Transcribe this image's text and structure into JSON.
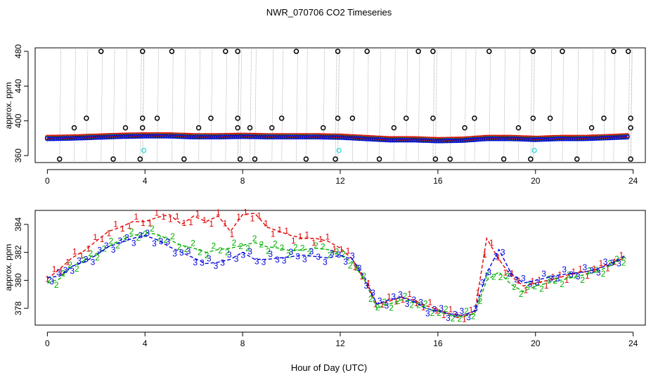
{
  "title": "NWR_070706  CO2 Timeseries",
  "xlabel": "Hour of Day (UTC)",
  "colors": {
    "series1": "#e00000",
    "series2": "#00b000",
    "series3": "#0000e0",
    "outlier": "#000000",
    "marker": "#40e0e0",
    "gray": "#999999"
  },
  "chart_data": [
    {
      "type": "scatter",
      "title": "NWR_070706  CO2 Timeseries",
      "xlabel": "",
      "ylabel": "approx. ppm",
      "xlim": [
        -0.5,
        24.5
      ],
      "ylim": [
        352,
        484
      ],
      "xticks": [
        0,
        4,
        8,
        12,
        16,
        20,
        24
      ],
      "yticks": [
        360,
        400,
        440,
        480
      ],
      "xtick_labels": [
        "0",
        "4",
        "8",
        "12",
        "16",
        "20",
        "24"
      ],
      "ytick_labels": [
        "360",
        "400",
        "440",
        "480"
      ],
      "baseline": {
        "x": [
          0,
          1,
          2,
          3,
          4,
          5,
          6,
          7,
          8,
          9,
          10,
          11,
          12,
          13,
          14,
          15,
          16,
          17,
          18,
          19,
          20,
          21,
          22,
          23,
          23.8
        ],
        "y": [
          380,
          380.5,
          381.5,
          382.5,
          383,
          383,
          382,
          382,
          382.5,
          382,
          382,
          382,
          381.5,
          380,
          378.5,
          378.5,
          377.5,
          378,
          380,
          380,
          379,
          380,
          380,
          381,
          382
        ]
      },
      "outliers_high": [
        2.2,
        3.9,
        5.1,
        7.3,
        7.8,
        10.2,
        11.9,
        13.1,
        15.2,
        15.8,
        18.1,
        19.9,
        21.1,
        23.2,
        23.8
      ],
      "outliers_low": [
        0.5,
        2.7,
        3.8,
        5.6,
        7.9,
        8.5,
        10.6,
        11.8,
        13.6,
        15.9,
        16.5,
        18.7,
        19.8,
        21.7,
        23.9
      ],
      "outliers_mid": [
        {
          "x": 1.1,
          "y": 392
        },
        {
          "x": 1.6,
          "y": 403
        },
        {
          "x": 3.2,
          "y": 392
        },
        {
          "x": 3.9,
          "y": 392
        },
        {
          "x": 3.9,
          "y": 403
        },
        {
          "x": 4.5,
          "y": 403
        },
        {
          "x": 6.2,
          "y": 392
        },
        {
          "x": 6.7,
          "y": 403
        },
        {
          "x": 7.8,
          "y": 392
        },
        {
          "x": 7.8,
          "y": 403
        },
        {
          "x": 8.3,
          "y": 392
        },
        {
          "x": 9.2,
          "y": 392
        },
        {
          "x": 9.6,
          "y": 403
        },
        {
          "x": 11.3,
          "y": 392
        },
        {
          "x": 11.9,
          "y": 403
        },
        {
          "x": 12.5,
          "y": 403
        },
        {
          "x": 14.2,
          "y": 392
        },
        {
          "x": 14.7,
          "y": 403
        },
        {
          "x": 15.8,
          "y": 403
        },
        {
          "x": 17.1,
          "y": 392
        },
        {
          "x": 17.5,
          "y": 403
        },
        {
          "x": 19.3,
          "y": 392
        },
        {
          "x": 19.9,
          "y": 403
        },
        {
          "x": 20.6,
          "y": 403
        },
        {
          "x": 22.3,
          "y": 392
        },
        {
          "x": 22.8,
          "y": 403
        },
        {
          "x": 23.9,
          "y": 392
        },
        {
          "x": 23.9,
          "y": 403
        }
      ],
      "cyan_markers": [
        {
          "x": 3.95,
          "y": 366
        },
        {
          "x": 11.95,
          "y": 366
        },
        {
          "x": 19.95,
          "y": 366
        }
      ]
    },
    {
      "type": "line",
      "title": "",
      "xlabel": "Hour of Day (UTC)",
      "ylabel": "approx. ppm",
      "xlim": [
        -0.5,
        24.5
      ],
      "ylim": [
        376.8,
        385
      ],
      "xticks": [
        0,
        4,
        8,
        12,
        16,
        20,
        24
      ],
      "yticks": [
        378,
        380,
        382,
        384
      ],
      "xtick_labels": [
        "0",
        "4",
        "8",
        "12",
        "16",
        "20",
        "24"
      ],
      "ytick_labels": [
        "378",
        "380",
        "382",
        "384"
      ],
      "series": [
        {
          "name": "1",
          "x": [
            0,
            0.5,
            1,
            1.5,
            2,
            2.5,
            3,
            3.5,
            4,
            4.5,
            5,
            5.5,
            6,
            6.5,
            7,
            7.5,
            8,
            8.5,
            9,
            9.5,
            10,
            10.5,
            11,
            11.5,
            12,
            12.5,
            13,
            13.5,
            14,
            14.5,
            15,
            15.5,
            16,
            16.5,
            17,
            17.5,
            18,
            18.5,
            19,
            19.5,
            20,
            20.5,
            21,
            21.5,
            22,
            22.5,
            23,
            23.7
          ],
          "y": [
            380.1,
            380.8,
            381.6,
            382.1,
            382.8,
            383.5,
            383.8,
            384.2,
            384.2,
            384.5,
            384.7,
            384.0,
            384.6,
            384.2,
            384.6,
            383.5,
            384.7,
            384.8,
            383.8,
            383.5,
            383.2,
            383.0,
            383.0,
            382.8,
            382.3,
            381.5,
            380.0,
            378.3,
            378.5,
            378.8,
            378.6,
            378.2,
            377.9,
            377.6,
            377.5,
            377.6,
            383.0,
            381.5,
            380.3,
            379.6,
            379.8,
            380.0,
            380.2,
            380.5,
            380.6,
            380.8,
            381.2,
            381.6
          ]
        },
        {
          "name": "2",
          "x": [
            0,
            0.5,
            1,
            1.5,
            2,
            2.5,
            3,
            3.5,
            4,
            4.5,
            5,
            5.5,
            6,
            6.5,
            7,
            7.5,
            8,
            8.5,
            9,
            9.5,
            10,
            10.5,
            11,
            11.5,
            12,
            12.5,
            13,
            13.5,
            14,
            14.5,
            15,
            15.5,
            16,
            16.5,
            17,
            17.5,
            18,
            18.5,
            19,
            19.5,
            20,
            20.5,
            21,
            21.5,
            22,
            22.5,
            23,
            23.7
          ],
          "y": [
            379.8,
            380.1,
            381.0,
            381.4,
            381.9,
            382.4,
            382.9,
            383.2,
            383.4,
            383.3,
            382.9,
            382.5,
            382.3,
            382.0,
            382.2,
            382.3,
            382.5,
            382.7,
            382.4,
            382.3,
            382.1,
            382.2,
            382.3,
            382.2,
            381.8,
            381.3,
            380.0,
            378.0,
            378.3,
            378.6,
            378.5,
            378.0,
            377.8,
            377.5,
            377.4,
            377.6,
            380.0,
            380.6,
            379.7,
            379.2,
            379.6,
            379.8,
            380.0,
            380.2,
            380.4,
            380.6,
            381.0,
            381.7
          ]
        },
        {
          "name": "3",
          "x": [
            0,
            0.5,
            1,
            1.5,
            2,
            2.5,
            3,
            3.5,
            4,
            4.5,
            5,
            5.5,
            6,
            6.5,
            7,
            7.5,
            8,
            8.5,
            9,
            9.5,
            10,
            10.5,
            11,
            11.5,
            12,
            12.5,
            13,
            13.5,
            14,
            14.5,
            15,
            15.5,
            16,
            16.5,
            17,
            17.5,
            18,
            18.5,
            19,
            19.5,
            20,
            20.5,
            21,
            21.5,
            22,
            22.5,
            23,
            23.7
          ],
          "y": [
            380.2,
            380.3,
            381.0,
            381.3,
            381.8,
            382.4,
            382.7,
            383.0,
            383.2,
            382.9,
            382.4,
            382.0,
            381.6,
            381.2,
            381.3,
            381.5,
            382.0,
            381.5,
            381.5,
            381.6,
            381.7,
            381.8,
            381.7,
            381.6,
            381.8,
            381.5,
            380.2,
            378.3,
            378.6,
            378.8,
            378.5,
            378.0,
            377.8,
            377.6,
            377.5,
            377.8,
            380.5,
            382.2,
            380.5,
            379.8,
            380.0,
            380.2,
            380.4,
            380.5,
            380.6,
            380.8,
            381.1,
            381.8
          ]
        }
      ]
    }
  ]
}
